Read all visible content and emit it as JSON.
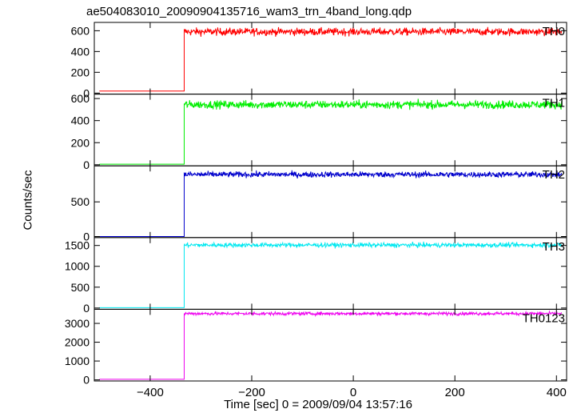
{
  "chart_data": {
    "type": "line",
    "title": "ae504083010_20090904135716_wam3_trn_4band_long.qdp",
    "xlabel": "Time [sec] 0 = 2009/09/04 13:57:16",
    "ylabel": "Counts/sec",
    "xlim": [
      -510,
      420
    ],
    "xticks": [
      -400,
      -200,
      0,
      200,
      400
    ],
    "xtick_labels": [
      "−400",
      "−200",
      "0",
      "200",
      "400"
    ],
    "step_x": -333,
    "panels": [
      {
        "name": "TH0",
        "color": "#ff0000",
        "ylim": [
          -10,
          680
        ],
        "yticks": [
          0,
          200,
          400,
          600
        ],
        "pre_level": 20,
        "post_level": 590,
        "noise": 30
      },
      {
        "name": "TH1",
        "color": "#00ee00",
        "ylim": [
          -10,
          640
        ],
        "yticks": [
          0,
          200,
          400,
          600
        ],
        "pre_level": 5,
        "post_level": 545,
        "noise": 30
      },
      {
        "name": "TH2",
        "color": "#0000cc",
        "ylim": [
          -15,
          1020
        ],
        "yticks": [
          0,
          500
        ],
        "pre_level": 0,
        "post_level": 895,
        "noise": 35
      },
      {
        "name": "TH3",
        "color": "#00e8f0",
        "ylim": [
          -30,
          1690
        ],
        "yticks": [
          0,
          500,
          1000,
          1500
        ],
        "pre_level": 10,
        "post_level": 1510,
        "noise": 45
      },
      {
        "name": "TH0123",
        "color": "#ee00ee",
        "ylim": [
          -60,
          3750
        ],
        "yticks": [
          0,
          1000,
          2000,
          3000
        ],
        "pre_level": 30,
        "post_level": 3520,
        "noise": 70
      }
    ]
  }
}
